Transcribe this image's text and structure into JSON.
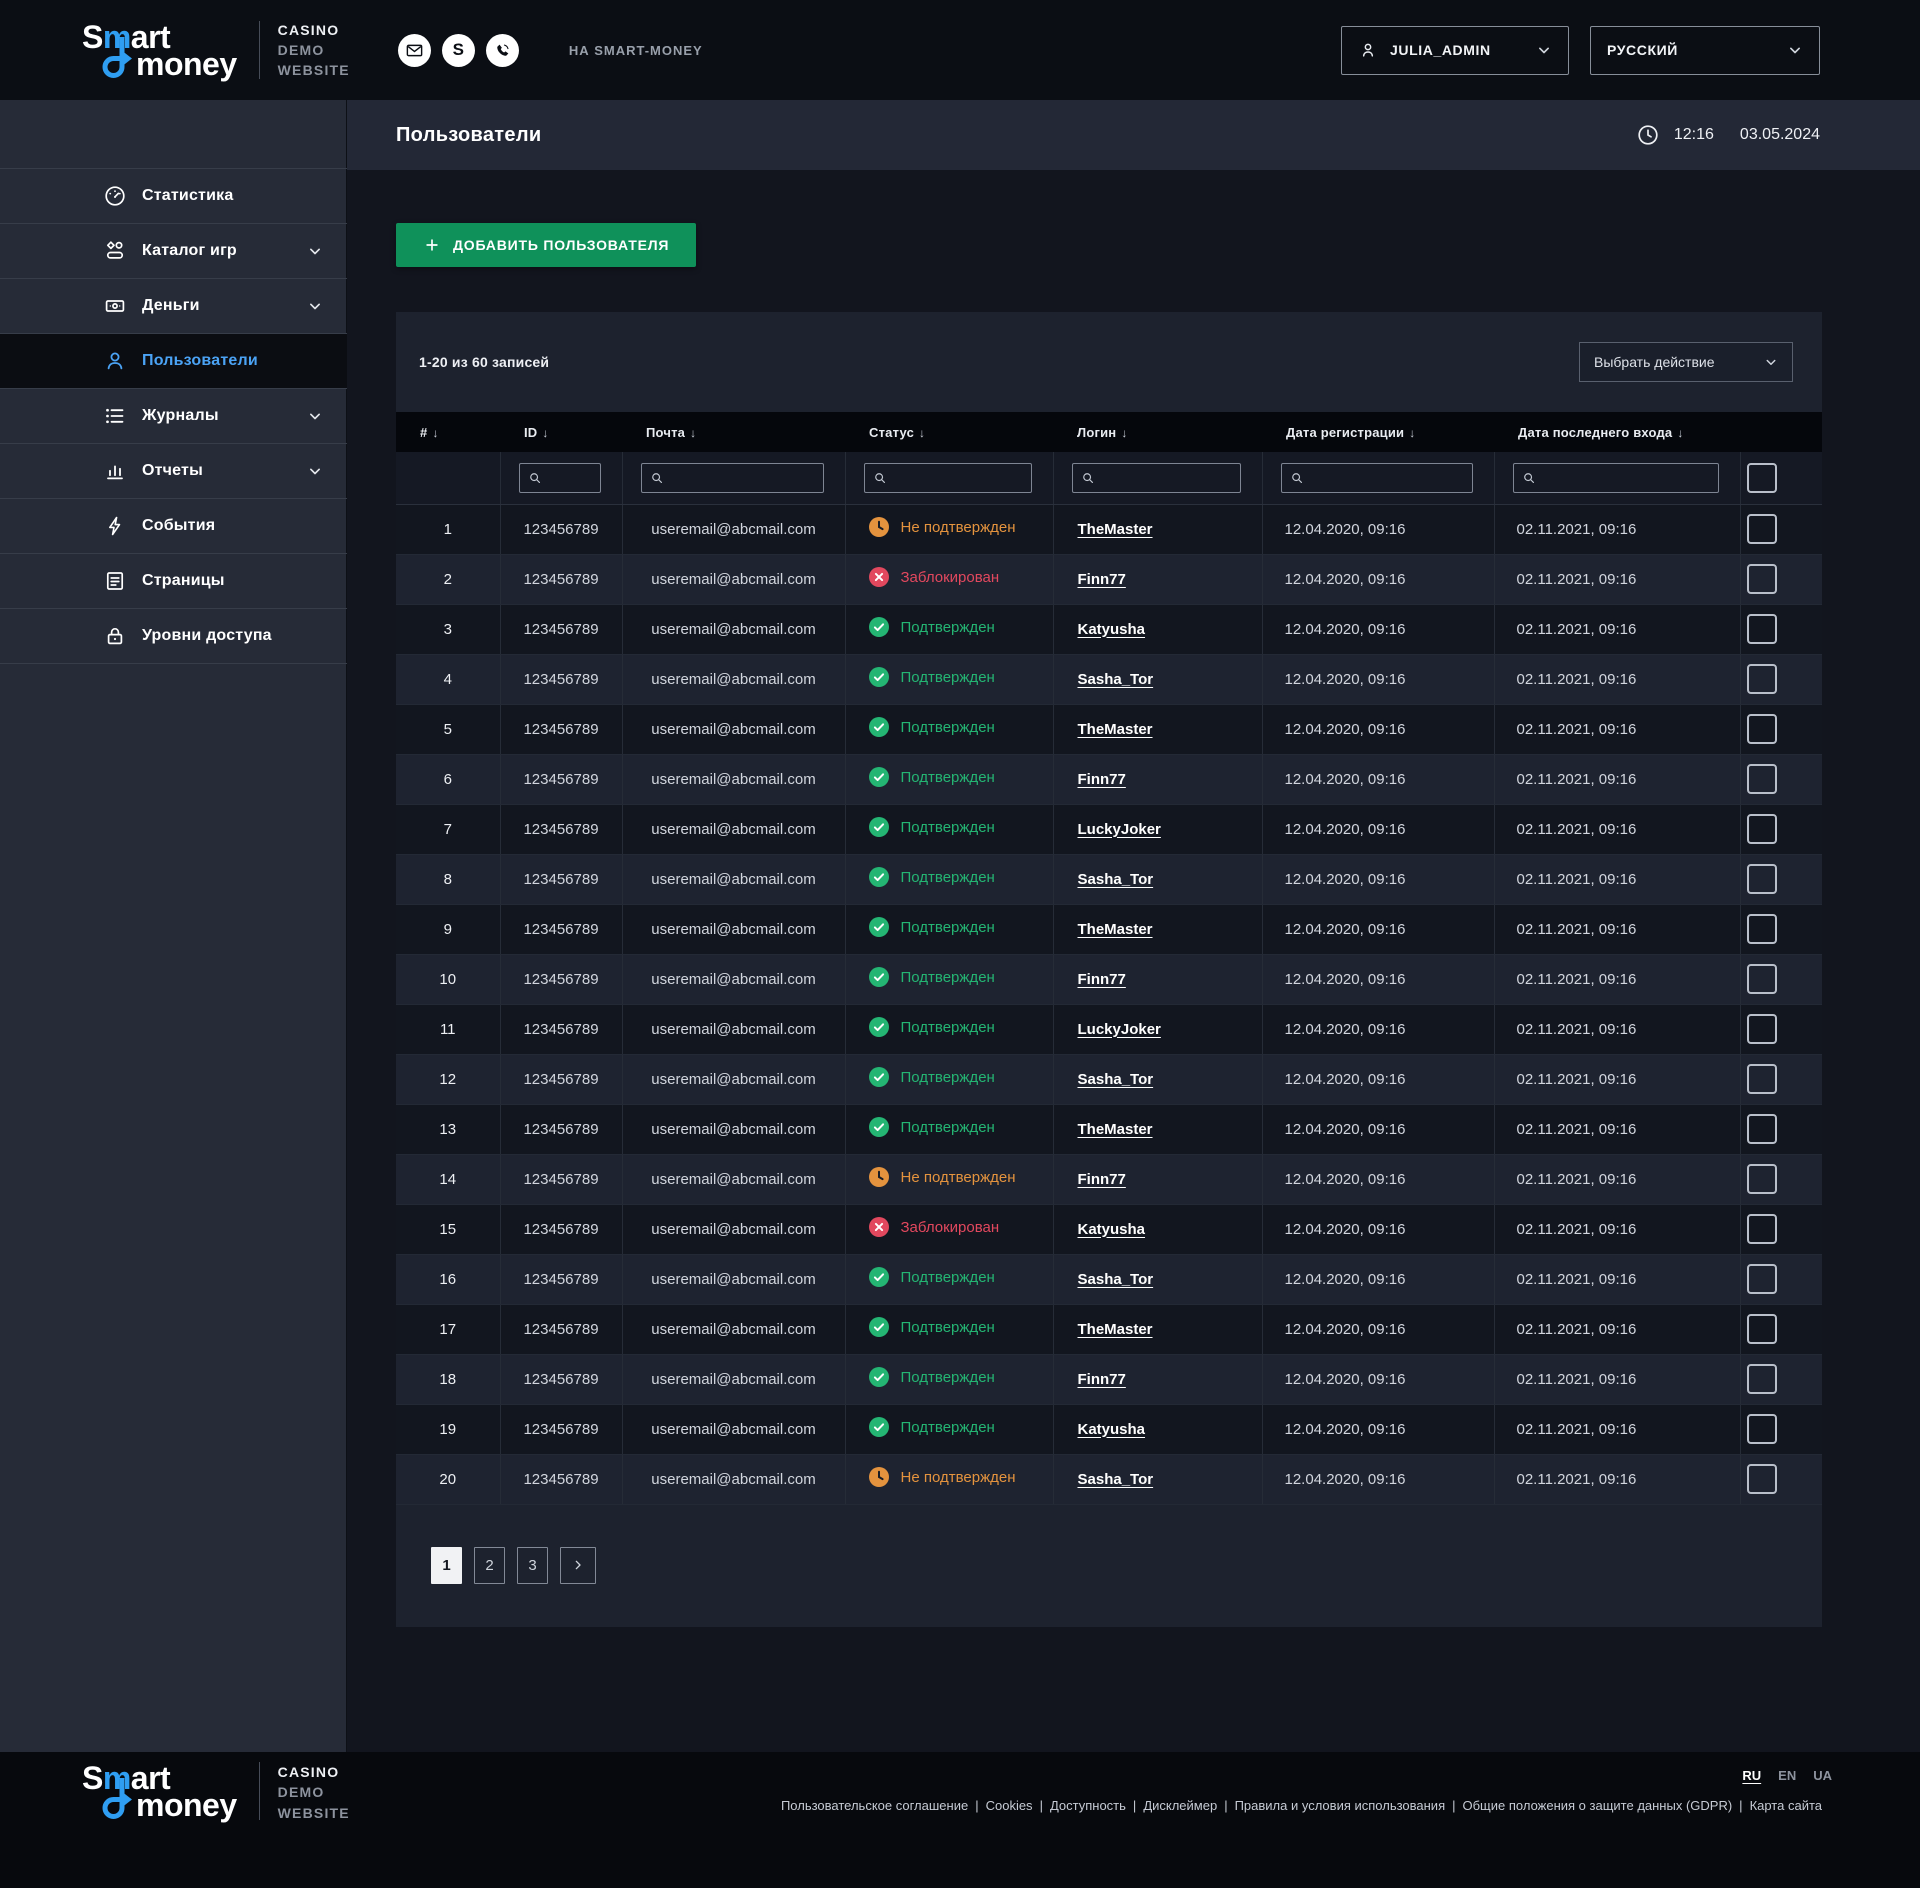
{
  "brand": {
    "word1_pre": "S",
    "word1_blue": "m",
    "word1_post": "art",
    "word2": "money",
    "tagline_1": "CASINO",
    "tagline_2": "DEMO",
    "tagline_3": "WEBSITE",
    "accent_blue": "#2f9ef2"
  },
  "header": {
    "contact_icons": [
      "mail-icon",
      "skype-icon",
      "viber-icon"
    ],
    "site_link": "НА SMART-MONEY",
    "user": {
      "label": "JULIA_ADMIN",
      "icon": "person-icon"
    },
    "language": {
      "label": "РУССКИЙ"
    }
  },
  "sidebar": {
    "items": [
      {
        "key": "statistics",
        "label": "Статистика",
        "icon": "gauge-icon",
        "expandable": false,
        "active": false
      },
      {
        "key": "game-catalog",
        "label": "Каталог игр",
        "icon": "games-icon",
        "expandable": true,
        "active": false
      },
      {
        "key": "money",
        "label": "Деньги",
        "icon": "money-icon",
        "expandable": true,
        "active": false
      },
      {
        "key": "users",
        "label": "Пользователи",
        "icon": "user-icon",
        "expandable": false,
        "active": true
      },
      {
        "key": "journals",
        "label": "Журналы",
        "icon": "list-icon",
        "expandable": true,
        "active": false
      },
      {
        "key": "reports",
        "label": "Отчеты",
        "icon": "chart-icon",
        "expandable": true,
        "active": false
      },
      {
        "key": "events",
        "label": "События",
        "icon": "lightning-icon",
        "expandable": false,
        "active": false
      },
      {
        "key": "pages",
        "label": "Страницы",
        "icon": "pages-icon",
        "expandable": false,
        "active": false
      },
      {
        "key": "access-levels",
        "label": "Уровни доступа",
        "icon": "lock-icon",
        "expandable": false,
        "active": false
      }
    ],
    "active_color": "#4ba3f5"
  },
  "page": {
    "title": "Пользователи",
    "time": "12:16",
    "date": "03.05.2024",
    "clock_icon": "clock-icon"
  },
  "toolbar": {
    "add_user_label": "ДОБАВИТЬ ПОЛЬЗОВАТЕЛЯ",
    "add_icon": "plus-icon",
    "button_color": "#0f915a"
  },
  "panel": {
    "records_info": "1-20 из 60 записей",
    "action_select": "Выбрать действие"
  },
  "statuses": {
    "confirmed": {
      "label": "Подтвержден",
      "color": "#24B573",
      "icon": "check-circle-icon"
    },
    "unconfirmed": {
      "label": "Не подтвержден",
      "color": "#E4933E",
      "icon": "clock-circle-icon"
    },
    "blocked": {
      "label": "Заблокирован",
      "color": "#E2485E",
      "icon": "x-circle-icon"
    }
  },
  "table": {
    "sort_glyph": "↓",
    "filter_icon": "search-icon",
    "columns": [
      {
        "key": "num",
        "label": "#"
      },
      {
        "key": "id",
        "label": "ID"
      },
      {
        "key": "email",
        "label": "Почта"
      },
      {
        "key": "status",
        "label": "Статус"
      },
      {
        "key": "login",
        "label": "Логин"
      },
      {
        "key": "registered",
        "label": "Дата регистрации"
      },
      {
        "key": "last-login",
        "label": "Дата последнего входа"
      }
    ],
    "rows": [
      {
        "num": "1",
        "id": "123456789",
        "email": "useremail@abcmail.com",
        "status": "unconfirmed",
        "login": "TheMaster",
        "registered": "12.04.2020, 09:16",
        "last_login": "02.11.2021, 09:16"
      },
      {
        "num": "2",
        "id": "123456789",
        "email": "useremail@abcmail.com",
        "status": "blocked",
        "login": "Finn77",
        "registered": "12.04.2020, 09:16",
        "last_login": "02.11.2021, 09:16"
      },
      {
        "num": "3",
        "id": "123456789",
        "email": "useremail@abcmail.com",
        "status": "confirmed",
        "login": "Katyusha",
        "registered": "12.04.2020, 09:16",
        "last_login": "02.11.2021, 09:16"
      },
      {
        "num": "4",
        "id": "123456789",
        "email": "useremail@abcmail.com",
        "status": "confirmed",
        "login": "Sasha_Tor",
        "registered": "12.04.2020, 09:16",
        "last_login": "02.11.2021, 09:16"
      },
      {
        "num": "5",
        "id": "123456789",
        "email": "useremail@abcmail.com",
        "status": "confirmed",
        "login": "TheMaster",
        "registered": "12.04.2020, 09:16",
        "last_login": "02.11.2021, 09:16"
      },
      {
        "num": "6",
        "id": "123456789",
        "email": "useremail@abcmail.com",
        "status": "confirmed",
        "login": "Finn77",
        "registered": "12.04.2020, 09:16",
        "last_login": "02.11.2021, 09:16"
      },
      {
        "num": "7",
        "id": "123456789",
        "email": "useremail@abcmail.com",
        "status": "confirmed",
        "login": "LuckyJoker",
        "registered": "12.04.2020, 09:16",
        "last_login": "02.11.2021, 09:16"
      },
      {
        "num": "8",
        "id": "123456789",
        "email": "useremail@abcmail.com",
        "status": "confirmed",
        "login": "Sasha_Tor",
        "registered": "12.04.2020, 09:16",
        "last_login": "02.11.2021, 09:16"
      },
      {
        "num": "9",
        "id": "123456789",
        "email": "useremail@abcmail.com",
        "status": "confirmed",
        "login": "TheMaster",
        "registered": "12.04.2020, 09:16",
        "last_login": "02.11.2021, 09:16"
      },
      {
        "num": "10",
        "id": "123456789",
        "email": "useremail@abcmail.com",
        "status": "confirmed",
        "login": "Finn77",
        "registered": "12.04.2020, 09:16",
        "last_login": "02.11.2021, 09:16"
      },
      {
        "num": "11",
        "id": "123456789",
        "email": "useremail@abcmail.com",
        "status": "confirmed",
        "login": "LuckyJoker",
        "registered": "12.04.2020, 09:16",
        "last_login": "02.11.2021, 09:16"
      },
      {
        "num": "12",
        "id": "123456789",
        "email": "useremail@abcmail.com",
        "status": "confirmed",
        "login": "Sasha_Tor",
        "registered": "12.04.2020, 09:16",
        "last_login": "02.11.2021, 09:16"
      },
      {
        "num": "13",
        "id": "123456789",
        "email": "useremail@abcmail.com",
        "status": "confirmed",
        "login": "TheMaster",
        "registered": "12.04.2020, 09:16",
        "last_login": "02.11.2021, 09:16"
      },
      {
        "num": "14",
        "id": "123456789",
        "email": "useremail@abcmail.com",
        "status": "unconfirmed",
        "login": "Finn77",
        "registered": "12.04.2020, 09:16",
        "last_login": "02.11.2021, 09:16"
      },
      {
        "num": "15",
        "id": "123456789",
        "email": "useremail@abcmail.com",
        "status": "blocked",
        "login": "Katyusha",
        "registered": "12.04.2020, 09:16",
        "last_login": "02.11.2021, 09:16"
      },
      {
        "num": "16",
        "id": "123456789",
        "email": "useremail@abcmail.com",
        "status": "confirmed",
        "login": "Sasha_Tor",
        "registered": "12.04.2020, 09:16",
        "last_login": "02.11.2021, 09:16"
      },
      {
        "num": "17",
        "id": "123456789",
        "email": "useremail@abcmail.com",
        "status": "confirmed",
        "login": "TheMaster",
        "registered": "12.04.2020, 09:16",
        "last_login": "02.11.2021, 09:16"
      },
      {
        "num": "18",
        "id": "123456789",
        "email": "useremail@abcmail.com",
        "status": "confirmed",
        "login": "Finn77",
        "registered": "12.04.2020, 09:16",
        "last_login": "02.11.2021, 09:16"
      },
      {
        "num": "19",
        "id": "123456789",
        "email": "useremail@abcmail.com",
        "status": "confirmed",
        "login": "Katyusha",
        "registered": "12.04.2020, 09:16",
        "last_login": "02.11.2021, 09:16"
      },
      {
        "num": "20",
        "id": "123456789",
        "email": "useremail@abcmail.com",
        "status": "unconfirmed",
        "login": "Sasha_Tor",
        "registered": "12.04.2020, 09:16",
        "last_login": "02.11.2021, 09:16"
      }
    ]
  },
  "pagination": {
    "pages": [
      "1",
      "2",
      "3"
    ],
    "active_page": "1",
    "next_icon": "chevron-right-icon"
  },
  "footer": {
    "links": [
      "Пользовательское соглашение",
      "Cookies",
      "Доступность",
      "Дисклеймер",
      "Правила и условия использования",
      "Общие положения о защите данных (GDPR)",
      "Карта сайта"
    ],
    "languages": [
      "RU",
      "EN",
      "UA"
    ],
    "active_language": "RU"
  }
}
